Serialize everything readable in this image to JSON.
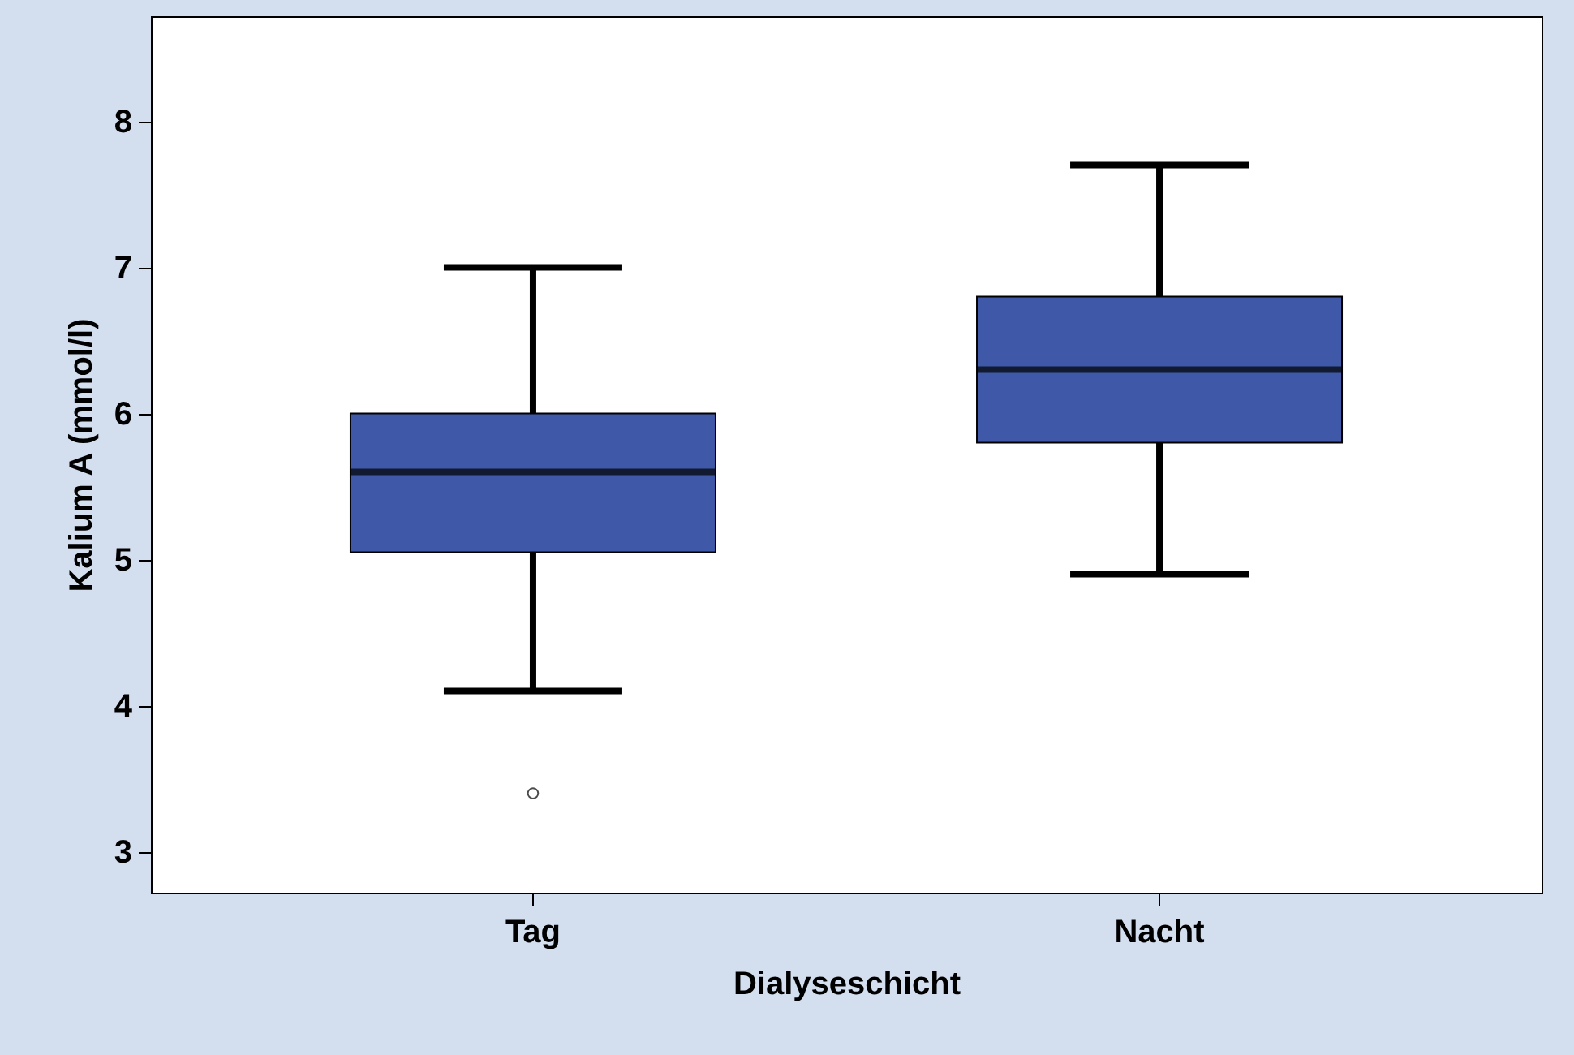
{
  "chart_data": {
    "type": "box",
    "categories": [
      "Tag",
      "Nacht"
    ],
    "xlabel": "Dialyseschicht",
    "ylabel": "Kalium A (mmol/l)",
    "ylim": [
      2.72,
      8.72
    ],
    "yticks": [
      {
        "value": 3,
        "label": "3"
      },
      {
        "value": 4,
        "label": "4"
      },
      {
        "value": 5,
        "label": "5"
      },
      {
        "value": 6,
        "label": "6"
      },
      {
        "value": 7,
        "label": "7"
      },
      {
        "value": 8,
        "label": "8"
      }
    ],
    "series": [
      {
        "color": "#3f58a8",
        "boxes": [
          {
            "low": 4.1,
            "q1": 5.05,
            "median": 5.6,
            "q3": 6.0,
            "high": 7.0,
            "outliers": [
              3.4
            ]
          },
          {
            "low": 4.9,
            "q1": 5.8,
            "median": 6.3,
            "q3": 6.8,
            "high": 7.7
          }
        ]
      }
    ]
  }
}
